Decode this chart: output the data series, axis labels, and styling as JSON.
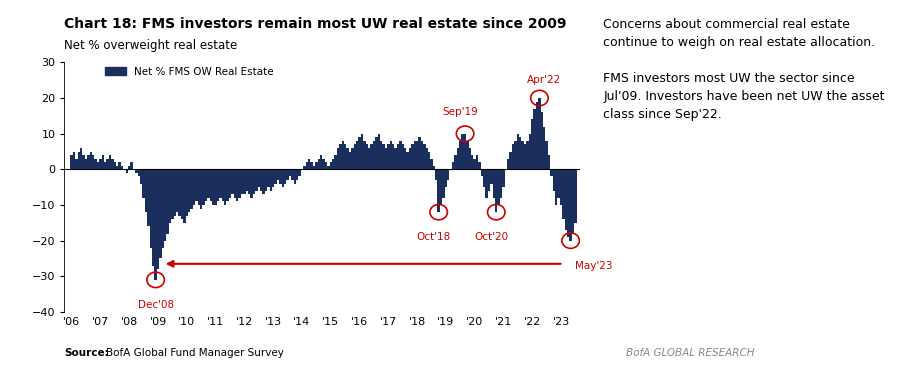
{
  "title": "Chart 18: FMS investors remain most UW real estate since 2009",
  "subtitle": "Net % overweight real estate",
  "legend_label": "Net % FMS OW Real Estate",
  "bar_color": "#1a2f5e",
  "annotation_color": "#cc0000",
  "ylim": [
    -40,
    30
  ],
  "yticks": [
    -40,
    -30,
    -20,
    -10,
    0,
    10,
    20,
    30
  ],
  "source_bold": "Source:",
  "source_rest": "  BofA Global Fund Manager Survey",
  "watermark": "BofA GLOBAL RESEARCH",
  "right_text": "Concerns about commercial real estate\ncontinue to weigh on real estate allocation.\n\nFMS investors most UW the sector since\nJul'09. Investors have been net UW the asset\nclass since Sep'22.",
  "xtick_years": [
    "'06",
    "'07",
    "'08",
    "'09",
    "'10",
    "'11",
    "'12",
    "'13",
    "'14",
    "'15",
    "'16",
    "'17",
    "'18",
    "'19",
    "'20",
    "'21",
    "'22",
    "'23"
  ]
}
